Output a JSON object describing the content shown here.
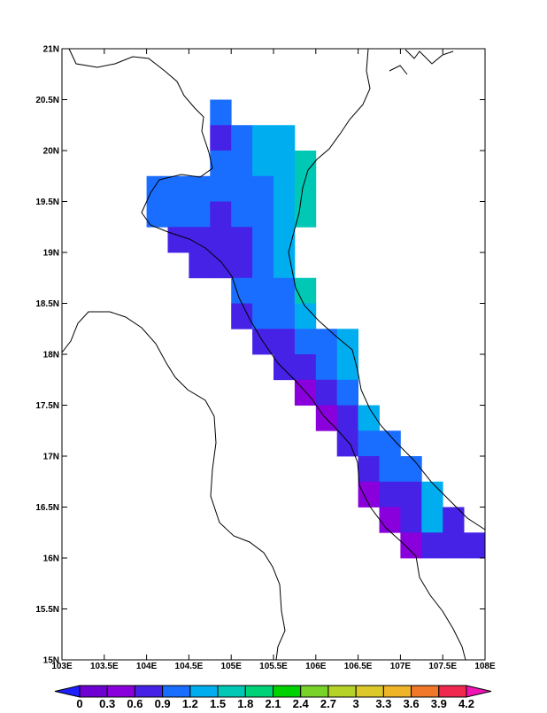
{
  "map": {
    "xlim": [
      103,
      108
    ],
    "ylim": [
      15,
      21
    ],
    "xticks": [
      {
        "value": 103,
        "label": "103E"
      },
      {
        "value": 103.5,
        "label": "103.5E"
      },
      {
        "value": 104,
        "label": "104E"
      },
      {
        "value": 104.5,
        "label": "104.5E"
      },
      {
        "value": 105,
        "label": "105E"
      },
      {
        "value": 105.5,
        "label": "105.5E"
      },
      {
        "value": 106,
        "label": "106E"
      },
      {
        "value": 106.5,
        "label": "106.5E"
      },
      {
        "value": 107,
        "label": "107E"
      },
      {
        "value": 107.5,
        "label": "107.5E"
      },
      {
        "value": 108,
        "label": "108E"
      }
    ],
    "yticks": [
      {
        "value": 15,
        "label": "15N"
      },
      {
        "value": 15.5,
        "label": "15.5N"
      },
      {
        "value": 16,
        "label": "16N"
      },
      {
        "value": 16.5,
        "label": "16.5N"
      },
      {
        "value": 17,
        "label": "17N"
      },
      {
        "value": 17.5,
        "label": "17.5N"
      },
      {
        "value": 18,
        "label": "18N"
      },
      {
        "value": 18.5,
        "label": "18.5N"
      },
      {
        "value": 19,
        "label": "19N"
      },
      {
        "value": 19.5,
        "label": "19.5N"
      },
      {
        "value": 20,
        "label": "20N"
      },
      {
        "value": 20.5,
        "label": "20.5N"
      },
      {
        "value": 21,
        "label": "21N"
      }
    ],
    "levels": [
      0,
      0.3,
      0.6,
      0.9,
      1.2,
      1.5,
      1.8,
      2.1,
      2.4,
      2.7,
      3,
      3.3,
      3.6,
      3.9,
      4.2
    ],
    "colors": [
      "#1e1eff",
      "#6e00d2",
      "#8a00dc",
      "#4622e6",
      "#1a6eff",
      "#00aef0",
      "#00c8b4",
      "#00d278",
      "#00d200",
      "#78d228",
      "#b4d228",
      "#dcc828",
      "#f0b428",
      "#f07828",
      "#f02850",
      "#f014b4"
    ],
    "cells": [
      [
        104.75,
        20.25,
        1.0
      ],
      [
        104.75,
        20.0,
        0.7
      ],
      [
        105.0,
        20.0,
        1.0
      ],
      [
        105.25,
        20.0,
        1.3
      ],
      [
        105.5,
        20.0,
        1.3
      ],
      [
        104.75,
        19.75,
        1.0
      ],
      [
        105.0,
        19.75,
        1.0
      ],
      [
        105.25,
        19.75,
        1.3
      ],
      [
        105.5,
        19.75,
        1.3
      ],
      [
        105.75,
        19.75,
        1.6
      ],
      [
        104.0,
        19.5,
        1.0
      ],
      [
        104.25,
        19.5,
        1.0
      ],
      [
        104.5,
        19.5,
        1.0
      ],
      [
        104.75,
        19.5,
        1.0
      ],
      [
        105.0,
        19.5,
        1.0
      ],
      [
        105.25,
        19.5,
        1.0
      ],
      [
        105.5,
        19.5,
        1.3
      ],
      [
        105.75,
        19.5,
        1.6
      ],
      [
        104.0,
        19.25,
        1.0
      ],
      [
        104.25,
        19.25,
        1.0
      ],
      [
        104.5,
        19.25,
        1.0
      ],
      [
        104.75,
        19.25,
        0.7
      ],
      [
        105.0,
        19.25,
        1.0
      ],
      [
        105.25,
        19.25,
        1.0
      ],
      [
        105.5,
        19.25,
        1.3
      ],
      [
        105.75,
        19.25,
        1.6
      ],
      [
        104.25,
        19.0,
        0.7
      ],
      [
        104.5,
        19.0,
        0.7
      ],
      [
        104.75,
        19.0,
        0.7
      ],
      [
        105.0,
        19.0,
        0.7
      ],
      [
        105.25,
        19.0,
        1.0
      ],
      [
        105.5,
        19.0,
        1.3
      ],
      [
        104.5,
        18.75,
        0.7
      ],
      [
        104.75,
        18.75,
        0.7
      ],
      [
        105.0,
        18.75,
        0.7
      ],
      [
        105.25,
        18.75,
        1.0
      ],
      [
        105.5,
        18.75,
        1.3
      ],
      [
        105.0,
        18.5,
        1.0
      ],
      [
        105.25,
        18.5,
        1.0
      ],
      [
        105.5,
        18.5,
        1.0
      ],
      [
        105.75,
        18.5,
        1.6
      ],
      [
        105.0,
        18.25,
        0.7
      ],
      [
        105.25,
        18.25,
        1.0
      ],
      [
        105.5,
        18.25,
        1.0
      ],
      [
        105.75,
        18.25,
        1.3
      ],
      [
        105.25,
        18.0,
        0.7
      ],
      [
        105.5,
        18.0,
        0.7
      ],
      [
        105.75,
        18.0,
        1.0
      ],
      [
        106.0,
        18.0,
        1.0
      ],
      [
        106.25,
        18.0,
        1.3
      ],
      [
        105.5,
        17.75,
        0.7
      ],
      [
        105.75,
        17.75,
        0.7
      ],
      [
        106.0,
        17.75,
        1.0
      ],
      [
        106.25,
        17.75,
        1.3
      ],
      [
        105.75,
        17.5,
        0.5
      ],
      [
        106.0,
        17.5,
        0.7
      ],
      [
        106.25,
        17.5,
        1.0
      ],
      [
        106.0,
        17.25,
        0.5
      ],
      [
        106.25,
        17.25,
        0.7
      ],
      [
        106.5,
        17.25,
        1.3
      ],
      [
        106.25,
        17.0,
        0.7
      ],
      [
        106.5,
        17.0,
        1.0
      ],
      [
        106.75,
        17.0,
        1.0
      ],
      [
        106.5,
        16.75,
        0.7
      ],
      [
        106.75,
        16.75,
        1.0
      ],
      [
        107.0,
        16.75,
        1.0
      ],
      [
        106.5,
        16.5,
        0.5
      ],
      [
        106.75,
        16.5,
        0.7
      ],
      [
        107.0,
        16.5,
        0.7
      ],
      [
        107.25,
        16.5,
        1.3
      ],
      [
        106.75,
        16.25,
        0.5
      ],
      [
        107.0,
        16.25,
        0.7
      ],
      [
        107.25,
        16.25,
        1.3
      ],
      [
        107.5,
        16.25,
        0.7
      ],
      [
        107.0,
        16.0,
        0.5
      ],
      [
        107.25,
        16.0,
        0.7
      ],
      [
        107.5,
        16.0,
        0.7
      ],
      [
        107.75,
        16.0,
        0.7
      ]
    ]
  }
}
